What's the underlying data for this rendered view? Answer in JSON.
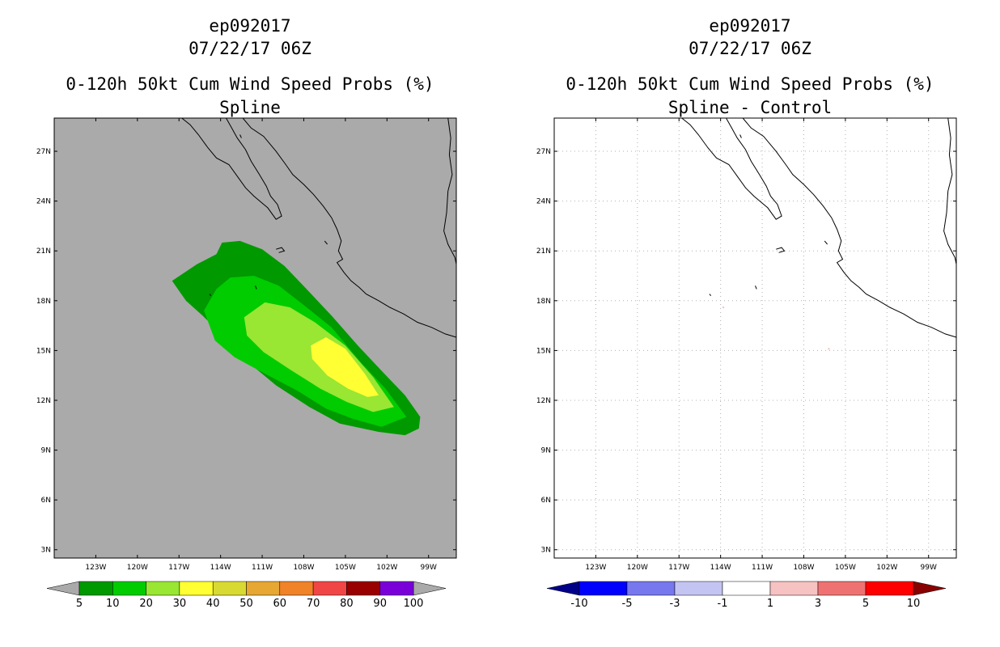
{
  "left_panel": {
    "storm_id": "ep092017",
    "datetime": "07/22/17 06Z",
    "product": "0-120h 50kt Cum Wind Speed Probs (%)",
    "subtitle": "Spline",
    "background_color": "#aaaaaa",
    "colorbar": {
      "labels": [
        "5",
        "10",
        "20",
        "30",
        "40",
        "50",
        "60",
        "70",
        "80",
        "90",
        "100"
      ],
      "colors": [
        "#009900",
        "#00cc00",
        "#99e633",
        "#ffff33",
        "#d9d933",
        "#e6a833",
        "#f08228",
        "#f04646",
        "#990000",
        "#7a00d9"
      ],
      "end_color": "#aaaaaa"
    }
  },
  "right_panel": {
    "storm_id": "ep092017",
    "datetime": "07/22/17 06Z",
    "product": "0-120h 50kt Cum Wind Speed Probs (%)",
    "subtitle": "Spline - Control",
    "background_color": "#ffffff",
    "colorbar": {
      "labels": [
        "-10",
        "-5",
        "-3",
        "-1",
        "1",
        "3",
        "5",
        "10"
      ],
      "colors": [
        "#0000ff",
        "#7777ee",
        "#c4c4f2",
        "#ffffff",
        "#f7c2c2",
        "#ef7272",
        "#ff0000"
      ],
      "low_end_color": "#000088",
      "high_end_color": "#880000"
    }
  },
  "map": {
    "lat_labels": [
      "27N",
      "24N",
      "21N",
      "18N",
      "15N",
      "12N",
      "9N",
      "6N",
      "3N"
    ],
    "lon_labels": [
      "123W",
      "120W",
      "117W",
      "114W",
      "111W",
      "108W",
      "105W",
      "102W",
      "99W"
    ],
    "lon_range": [
      -126,
      -97
    ],
    "lat_range": [
      2.5,
      29
    ],
    "gridlines_right_panel": true
  },
  "probability_contours": {
    "levels": [
      5,
      10,
      20,
      30
    ]
  }
}
